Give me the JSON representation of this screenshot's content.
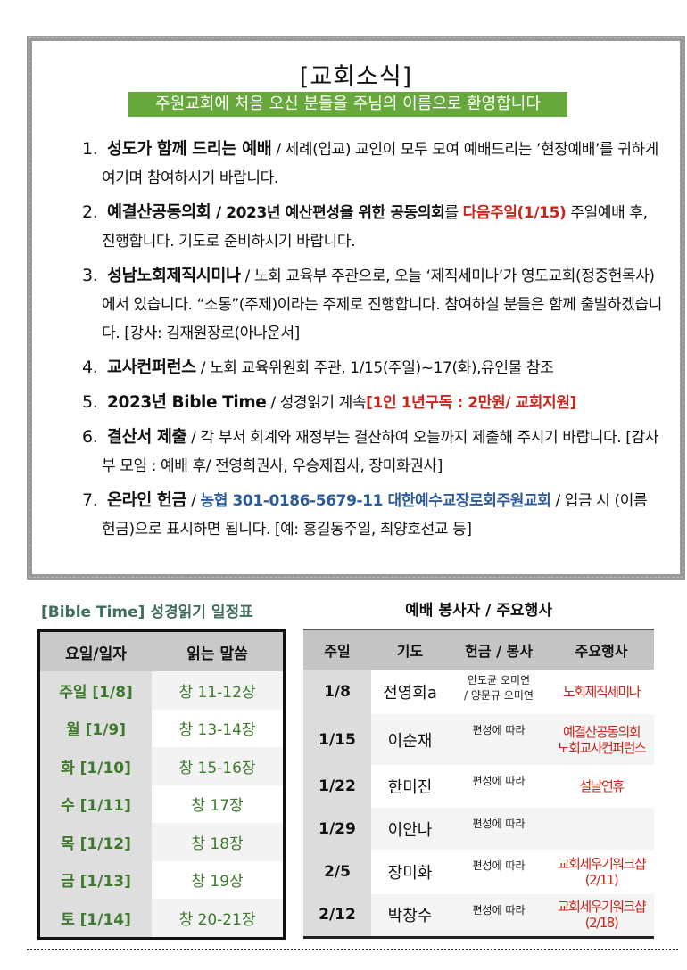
{
  "news": {
    "title": "[교회소식]",
    "banner": "주원교회에 처음 오신 분들을 주님의 이름으로 환영합니다",
    "items": [
      {
        "num": "1.",
        "title": "성도가 함께 드리는 예배",
        "parts": [
          {
            "t": " / 세례(입교) 교인이 모두 모여 예배드리는 ’현장예배’를 귀하게 여기며 참여하시기 바랍니다.",
            "s": ""
          }
        ]
      },
      {
        "num": "2.",
        "title": "예결산공동의회",
        "parts": [
          {
            "t": " / 2023년 예산편성을 위한 공동의회",
            "s": "bold"
          },
          {
            "t": "를 ",
            "s": ""
          },
          {
            "t": "다음주일(1/15)",
            "s": "redb"
          },
          {
            "t": " 주일예배 후, 진행합니다. 기도로 준비하시기 바랍니다.",
            "s": ""
          }
        ]
      },
      {
        "num": "3.",
        "title": "성남노회제직시미나",
        "parts": [
          {
            "t": " / 노회 교육부 주관으로, 오늘 ‘제직세미나’가 영도교회(정중헌목사)에서 있습니다. “소통”(주제)이라는 주제로 진행합니다. 참여하실 분들은 함께 출발하겠습니다. [강사: 김재원장로(아나운서]",
            "s": ""
          }
        ]
      },
      {
        "num": "4.",
        "title": "교사컨퍼런스",
        "parts": [
          {
            "t": " / 노회 교육위원회 주관, 1/15(주일)~17(화),유인물 참조",
            "s": ""
          }
        ]
      },
      {
        "num": "5.",
        "title": "2023년 Bible Time",
        "parts": [
          {
            "t": " / 성경읽기 계속",
            "s": ""
          },
          {
            "t": "[1인 1년구독 : 2만원/ 교회지원]",
            "s": "redb"
          }
        ]
      },
      {
        "num": "6.",
        "title": "결산서 제출",
        "parts": [
          {
            "t": " / 각 부서 회계와 재정부는 결산하여 오늘까지 제출해 주시기 바랍니다. [감사부 모임 : 예배 후/ 전영희권사, 우승제집사, 장미화권사]",
            "s": ""
          }
        ]
      },
      {
        "num": "7.",
        "title": "온라인 헌금",
        "parts": [
          {
            "t": " / ",
            "s": ""
          },
          {
            "t": "농협 301-0186-5679-11  대한예수교장로회주원교회",
            "s": "blue"
          },
          {
            "t": " / 입금 시 (이름 헌금)으로 표시하면 됩니다. [예: 홍길동주일, 최양호선교 등]",
            "s": ""
          }
        ]
      }
    ]
  },
  "bible": {
    "title": "[Bible Time] 성경읽기 일정표",
    "headers": [
      "요일/일자",
      "읽는 말씀"
    ],
    "rows": [
      [
        "주일 [1/8]",
        "창 11-12장"
      ],
      [
        "월 [1/9]",
        "창 13-14장"
      ],
      [
        "화 [1/10]",
        "창 15-16장"
      ],
      [
        "수 [1/11]",
        "창 17장"
      ],
      [
        "목 [1/12]",
        "창 18장"
      ],
      [
        "금 [1/13]",
        "창 19장"
      ],
      [
        "토 [1/14]",
        "창 20-21장"
      ]
    ]
  },
  "service": {
    "title": "예배 봉사자 / 주요행사",
    "headers": [
      "주일",
      "기도",
      "헌금 / 봉사",
      "주요행사"
    ],
    "rows": [
      {
        "date": "1/8",
        "prayer": "전영희a",
        "offering": "안도균 오미연\n/ 양문규 오미연",
        "event": "노회제직세미나"
      },
      {
        "date": "1/15",
        "prayer": "이순재",
        "offering": "편성에 따라",
        "event": "예결산공동의회\n노회교사컨퍼런스"
      },
      {
        "date": "1/22",
        "prayer": "한미진",
        "offering": "편성에 따라",
        "event": "설날연휴"
      },
      {
        "date": "1/29",
        "prayer": "이안나",
        "offering": "편성에 따라",
        "event": ""
      },
      {
        "date": "2/5",
        "prayer": "장미화",
        "offering": "편성에 따라",
        "event": "교회세우기워크샵\n(2/11)"
      },
      {
        "date": "2/12",
        "prayer": "박창수",
        "offering": "편성에 따라",
        "event": "교회세우기워크샵\n(2/18)"
      }
    ]
  },
  "colors": {
    "banner": "#67a83c",
    "highlight_red": "#c8261c",
    "account_blue": "#2c5b9a",
    "bible_green": "#3e7a2c"
  }
}
